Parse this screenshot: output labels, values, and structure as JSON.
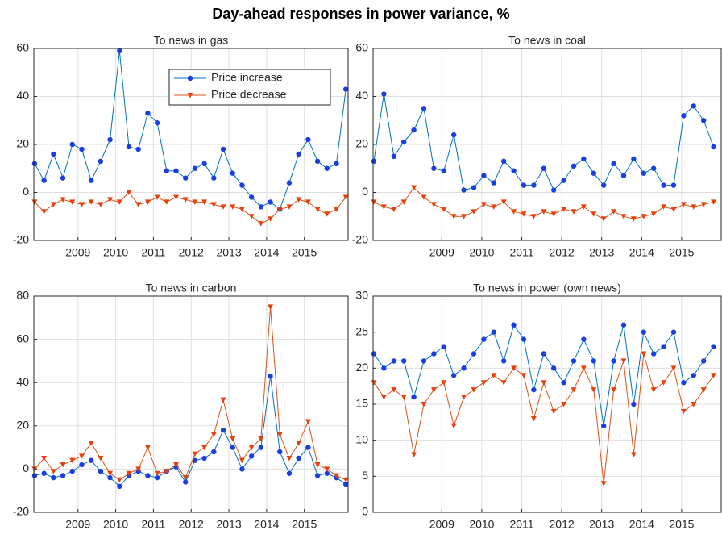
{
  "title": "Day-ahead responses in power variance, %",
  "chart_data": [
    {
      "type": "line",
      "title": "To news in gas",
      "x": [
        2007.85,
        2008.1,
        2008.35,
        2008.6,
        2008.85,
        2009.1,
        2009.35,
        2009.6,
        2009.85,
        2010.1,
        2010.35,
        2010.6,
        2010.85,
        2011.1,
        2011.35,
        2011.6,
        2011.85,
        2012.1,
        2012.35,
        2012.6,
        2012.85,
        2013.1,
        2013.35,
        2013.6,
        2013.85,
        2014.1,
        2014.35,
        2014.6,
        2014.85,
        2015.1,
        2015.35,
        2015.6,
        2015.85,
        2016.1
      ],
      "series": [
        {
          "name": "Price increase",
          "color": "#0072bd",
          "marker": "circle",
          "marker_color": "#1a3fe0",
          "values": [
            12,
            5,
            16,
            6,
            20,
            18,
            5,
            13,
            22,
            59,
            19,
            18,
            33,
            29,
            9,
            9,
            6,
            10,
            12,
            6,
            18,
            8,
            3,
            -2,
            -6,
            -4,
            -7,
            4,
            16,
            22,
            13,
            10,
            12,
            43
          ]
        },
        {
          "name": "Price decrease",
          "color": "#d95319",
          "marker": "triangle-down",
          "marker_color": "#e8400c",
          "values": [
            -4,
            -8,
            -5,
            -3,
            -4,
            -5,
            -4,
            -5,
            -3,
            -4,
            0,
            -5,
            -4,
            -2,
            -4,
            -2,
            -3,
            -4,
            -4,
            -5,
            -6,
            -6,
            -7,
            -10,
            -13,
            -11,
            -7,
            -6,
            -3,
            -4,
            -7,
            -9,
            -7,
            -2
          ]
        }
      ],
      "xlim": [
        2007.83,
        2016.16
      ],
      "xticks": [
        2009,
        2010,
        2011,
        2012,
        2013,
        2014,
        2015
      ],
      "ylim": [
        -20,
        60
      ],
      "yticks": [
        -20,
        0,
        20,
        40,
        60
      ],
      "grid": true,
      "legend": "upper right"
    },
    {
      "type": "line",
      "title": "To news in coal",
      "x": [
        2007.3,
        2007.55,
        2007.8,
        2008.05,
        2008.3,
        2008.55,
        2008.8,
        2009.05,
        2009.3,
        2009.55,
        2009.8,
        2010.05,
        2010.3,
        2010.55,
        2010.8,
        2011.05,
        2011.3,
        2011.55,
        2011.8,
        2012.05,
        2012.3,
        2012.55,
        2012.8,
        2013.05,
        2013.3,
        2013.55,
        2013.8,
        2014.05,
        2014.3,
        2014.55,
        2014.8,
        2015.05,
        2015.3,
        2015.55,
        2015.8
      ],
      "series": [
        {
          "color": "#0072bd",
          "marker": "circle",
          "marker_color": "#1a3fe0",
          "values": [
            13,
            41,
            15,
            21,
            26,
            35,
            10,
            9,
            24,
            1,
            2,
            7,
            4,
            13,
            9,
            3,
            3,
            10,
            1,
            5,
            11,
            14,
            8,
            3,
            12,
            7,
            14,
            8,
            10,
            3,
            3,
            32,
            36,
            30,
            19
          ]
        },
        {
          "color": "#d95319",
          "marker": "triangle-down",
          "marker_color": "#e8400c",
          "values": [
            -4,
            -6,
            -7,
            -4,
            2,
            -2,
            -5,
            -7,
            -10,
            -10,
            -8,
            -5,
            -6,
            -4,
            -8,
            -9,
            -10,
            -8,
            -9,
            -7,
            -8,
            -6,
            -9,
            -11,
            -8,
            -10,
            -11,
            -10,
            -9,
            -6,
            -7,
            -5,
            -6,
            -5,
            -4
          ]
        }
      ],
      "xlim": [
        2007.28,
        2015.99
      ],
      "xticks": [
        2009,
        2010,
        2011,
        2012,
        2013,
        2014,
        2015
      ],
      "ylim": [
        -20,
        60
      ],
      "yticks": [
        -20,
        0,
        20,
        40,
        60
      ],
      "grid": true
    },
    {
      "type": "line",
      "title": "To news in carbon",
      "x": [
        2007.85,
        2008.1,
        2008.35,
        2008.6,
        2008.85,
        2009.1,
        2009.35,
        2009.6,
        2009.85,
        2010.1,
        2010.35,
        2010.6,
        2010.85,
        2011.1,
        2011.35,
        2011.6,
        2011.85,
        2012.1,
        2012.35,
        2012.6,
        2012.85,
        2013.1,
        2013.35,
        2013.6,
        2013.85,
        2014.1,
        2014.35,
        2014.6,
        2014.85,
        2015.1,
        2015.35,
        2015.6,
        2015.85,
        2016.1
      ],
      "series": [
        {
          "color": "#0072bd",
          "marker": "circle",
          "marker_color": "#1a3fe0",
          "values": [
            -3,
            -2,
            -4,
            -3,
            -1,
            2,
            4,
            -1,
            -4,
            -8,
            -3,
            -1,
            -3,
            -4,
            -1,
            1,
            -6,
            4,
            5,
            8,
            18,
            10,
            0,
            6,
            10,
            43,
            8,
            -2,
            5,
            10,
            -3,
            -2,
            -4,
            -7
          ]
        },
        {
          "color": "#d95319",
          "marker": "triangle-down",
          "marker_color": "#e8400c",
          "values": [
            0,
            5,
            -1,
            2,
            4,
            6,
            12,
            5,
            -2,
            -5,
            -2,
            0,
            10,
            -2,
            -1,
            2,
            -4,
            7,
            10,
            16,
            32,
            14,
            4,
            10,
            14,
            75,
            16,
            5,
            12,
            22,
            2,
            0,
            -3,
            -5
          ]
        }
      ],
      "xlim": [
        2007.83,
        2016.16
      ],
      "xticks": [
        2009,
        2010,
        2011,
        2012,
        2013,
        2014,
        2015
      ],
      "ylim": [
        -20,
        80
      ],
      "yticks": [
        -20,
        0,
        20,
        40,
        60,
        80
      ],
      "grid": true
    },
    {
      "type": "line",
      "title": "To news in power (own news)",
      "x": [
        2007.3,
        2007.55,
        2007.8,
        2008.05,
        2008.3,
        2008.55,
        2008.8,
        2009.05,
        2009.3,
        2009.55,
        2009.8,
        2010.05,
        2010.3,
        2010.55,
        2010.8,
        2011.05,
        2011.3,
        2011.55,
        2011.8,
        2012.05,
        2012.3,
        2012.55,
        2012.8,
        2013.05,
        2013.3,
        2013.55,
        2013.8,
        2014.05,
        2014.3,
        2014.55,
        2014.8,
        2015.05,
        2015.3,
        2015.55,
        2015.8
      ],
      "series": [
        {
          "color": "#0072bd",
          "marker": "circle",
          "marker_color": "#1a3fe0",
          "values": [
            22,
            20,
            21,
            21,
            16,
            21,
            22,
            23,
            19,
            20,
            22,
            24,
            25,
            21,
            26,
            24,
            17,
            22,
            20,
            18,
            21,
            24,
            21,
            12,
            21,
            26,
            15,
            25,
            22,
            23,
            25,
            18,
            19,
            21,
            23
          ]
        },
        {
          "color": "#d95319",
          "marker": "triangle-down",
          "marker_color": "#e8400c",
          "values": [
            18,
            16,
            17,
            16,
            8,
            15,
            17,
            18,
            12,
            16,
            17,
            18,
            19,
            18,
            20,
            19,
            13,
            18,
            14,
            15,
            17,
            20,
            17,
            4,
            17,
            21,
            8,
            22,
            17,
            18,
            20,
            14,
            15,
            17,
            19
          ]
        }
      ],
      "xlim": [
        2007.28,
        2015.99
      ],
      "xticks": [
        2009,
        2010,
        2011,
        2012,
        2013,
        2014,
        2015
      ],
      "ylim": [
        0,
        30
      ],
      "yticks": [
        0,
        5,
        10,
        15,
        20,
        25,
        30
      ],
      "grid": true
    }
  ]
}
